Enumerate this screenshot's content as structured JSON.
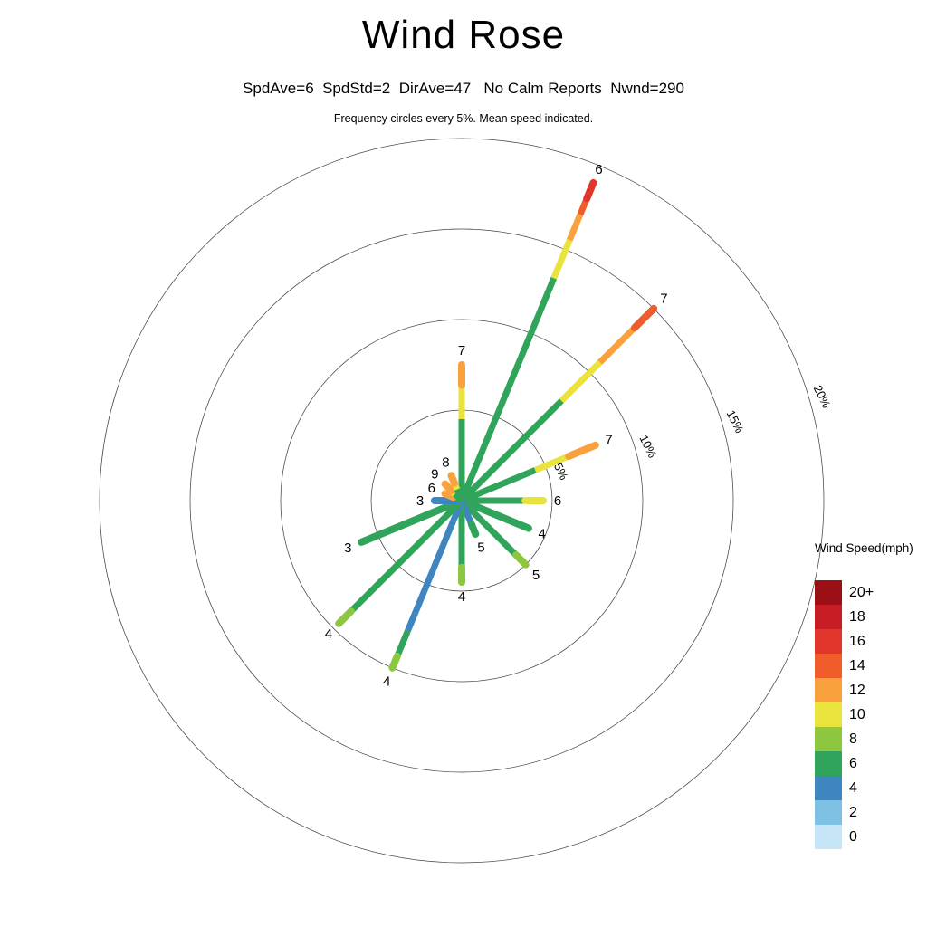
{
  "header": {
    "title": "Wind Rose",
    "subtitle": "SpdAve=6  SpdStd=2  DirAve=47   No Calm Reports  Nwnd=290",
    "note": "Frequency circles every 5%. Mean speed indicated."
  },
  "legend": {
    "title": "Wind Speed(mph)",
    "bins": [
      {
        "label": "20+",
        "color": "#9a1016"
      },
      {
        "label": "18",
        "color": "#c81d25"
      },
      {
        "label": "16",
        "color": "#e2362b"
      },
      {
        "label": "14",
        "color": "#f15d2a"
      },
      {
        "label": "12",
        "color": "#f9a13c"
      },
      {
        "label": "10",
        "color": "#e8e33d"
      },
      {
        "label": "8",
        "color": "#8dc63f"
      },
      {
        "label": "6",
        "color": "#2fa45a"
      },
      {
        "label": "4",
        "color": "#3f86c0"
      },
      {
        "label": "2",
        "color": "#7fc0e5"
      },
      {
        "label": "0",
        "color": "#c6e6f8"
      }
    ]
  },
  "chart_data": {
    "type": "windrose",
    "title": "Wind Rose",
    "stats": {
      "SpdAve": 6,
      "SpdStd": 2,
      "DirAve": 47,
      "calm_reports": "No Calm Reports",
      "Nwnd": 290
    },
    "frequency_ring_step_pct": 5,
    "frequency_rings_pct": [
      5,
      10,
      15,
      20
    ],
    "ring_labels": [
      "5%",
      "10%",
      "15%",
      "20%"
    ],
    "legend_title": "Wind Speed(mph)",
    "speed_bins_mph": [
      "0",
      "2",
      "4",
      "6",
      "8",
      "10",
      "12",
      "14",
      "16",
      "18",
      "20+"
    ],
    "spokes": [
      {
        "direction": "N",
        "angle_deg": 0,
        "frequency_pct": 7.5,
        "mean_speed_mph": 7,
        "segments": [
          {
            "speed_bin": "6",
            "frac": 0.6
          },
          {
            "speed_bin": "10",
            "frac": 0.25
          },
          {
            "speed_bin": "12",
            "frac": 0.15
          }
        ]
      },
      {
        "direction": "NNE",
        "angle_deg": 22.5,
        "frequency_pct": 19.0,
        "mean_speed_mph": 6,
        "segments": [
          {
            "speed_bin": "6",
            "frac": 0.7
          },
          {
            "speed_bin": "10",
            "frac": 0.12
          },
          {
            "speed_bin": "12",
            "frac": 0.08
          },
          {
            "speed_bin": "14",
            "frac": 0.05
          },
          {
            "speed_bin": "16",
            "frac": 0.05
          }
        ]
      },
      {
        "direction": "NE",
        "angle_deg": 45,
        "frequency_pct": 15.0,
        "mean_speed_mph": 7,
        "segments": [
          {
            "speed_bin": "6",
            "frac": 0.52
          },
          {
            "speed_bin": "10",
            "frac": 0.2
          },
          {
            "speed_bin": "12",
            "frac": 0.18
          },
          {
            "speed_bin": "14",
            "frac": 0.1
          }
        ]
      },
      {
        "direction": "ENE",
        "angle_deg": 67.5,
        "frequency_pct": 8.0,
        "mean_speed_mph": 7,
        "segments": [
          {
            "speed_bin": "6",
            "frac": 0.55
          },
          {
            "speed_bin": "10",
            "frac": 0.25
          },
          {
            "speed_bin": "12",
            "frac": 0.2
          }
        ]
      },
      {
        "direction": "E",
        "angle_deg": 90,
        "frequency_pct": 4.5,
        "mean_speed_mph": 6,
        "segments": [
          {
            "speed_bin": "6",
            "frac": 0.78
          },
          {
            "speed_bin": "10",
            "frac": 0.22
          }
        ]
      },
      {
        "direction": "ESE",
        "angle_deg": 112.5,
        "frequency_pct": 4.0,
        "mean_speed_mph": 4,
        "segments": [
          {
            "speed_bin": "6",
            "frac": 1.0
          }
        ]
      },
      {
        "direction": "SE",
        "angle_deg": 135,
        "frequency_pct": 5.0,
        "mean_speed_mph": 5,
        "segments": [
          {
            "speed_bin": "6",
            "frac": 0.85
          },
          {
            "speed_bin": "8",
            "frac": 0.15
          }
        ]
      },
      {
        "direction": "SSE",
        "angle_deg": 157.5,
        "frequency_pct": 2.0,
        "mean_speed_mph": 5,
        "segments": [
          {
            "speed_bin": "4",
            "frac": 0.7
          },
          {
            "speed_bin": "6",
            "frac": 0.3
          }
        ]
      },
      {
        "direction": "S",
        "angle_deg": 180,
        "frequency_pct": 4.5,
        "mean_speed_mph": 4,
        "segments": [
          {
            "speed_bin": "6",
            "frac": 0.82
          },
          {
            "speed_bin": "8",
            "frac": 0.18
          }
        ]
      },
      {
        "direction": "SSW",
        "angle_deg": 202.5,
        "frequency_pct": 10.0,
        "mean_speed_mph": 4,
        "segments": [
          {
            "speed_bin": "4",
            "frac": 0.78
          },
          {
            "speed_bin": "6",
            "frac": 0.15
          },
          {
            "speed_bin": "8",
            "frac": 0.07
          }
        ]
      },
      {
        "direction": "SW",
        "angle_deg": 225,
        "frequency_pct": 9.6,
        "mean_speed_mph": 4,
        "segments": [
          {
            "speed_bin": "6",
            "frac": 0.9
          },
          {
            "speed_bin": "8",
            "frac": 0.1
          }
        ]
      },
      {
        "direction": "WSW",
        "angle_deg": 247.5,
        "frequency_pct": 6.0,
        "mean_speed_mph": 3,
        "segments": [
          {
            "speed_bin": "6",
            "frac": 1.0
          }
        ]
      },
      {
        "direction": "W",
        "angle_deg": 270,
        "frequency_pct": 1.5,
        "mean_speed_mph": 3,
        "segments": [
          {
            "speed_bin": "4",
            "frac": 1.0
          }
        ]
      },
      {
        "direction": "WNW",
        "angle_deg": 292.5,
        "frequency_pct": 1.0,
        "mean_speed_mph": 6,
        "segments": [
          {
            "speed_bin": "6",
            "frac": 0.5
          },
          {
            "speed_bin": "12",
            "frac": 0.5
          }
        ]
      },
      {
        "direction": "NW",
        "angle_deg": 315,
        "frequency_pct": 1.3,
        "mean_speed_mph": 9,
        "segments": [
          {
            "speed_bin": "6",
            "frac": 0.4
          },
          {
            "speed_bin": "10",
            "frac": 0.2
          },
          {
            "speed_bin": "12",
            "frac": 0.4
          }
        ]
      },
      {
        "direction": "NNW",
        "angle_deg": 337.5,
        "frequency_pct": 1.5,
        "mean_speed_mph": 8,
        "segments": [
          {
            "speed_bin": "6",
            "frac": 0.45
          },
          {
            "speed_bin": "10",
            "frac": 0.25
          },
          {
            "speed_bin": "12",
            "frac": 0.3
          }
        ]
      }
    ]
  }
}
